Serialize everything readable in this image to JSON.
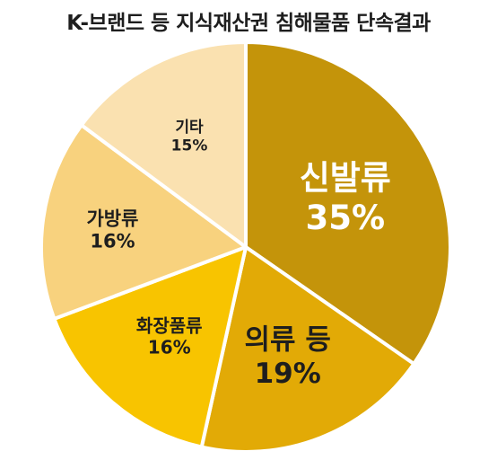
{
  "chart_data": {
    "type": "pie",
    "title": "K-브랜드 등 지식재산권 침해물품 단속결과",
    "slices": [
      {
        "label": "신발류",
        "value": 35,
        "value_label": "35%",
        "color": "#C4940A"
      },
      {
        "label": "의류 등",
        "value": 19,
        "value_label": "19%",
        "color": "#E2AA06"
      },
      {
        "label": "화장품류",
        "value": 16,
        "value_label": "16%",
        "color": "#F8C400"
      },
      {
        "label": "가방류",
        "value": 16,
        "value_label": "16%",
        "color": "#F8D27E"
      },
      {
        "label": "기타",
        "value": 15,
        "value_label": "15%",
        "color": "#FAE1B0"
      }
    ]
  }
}
